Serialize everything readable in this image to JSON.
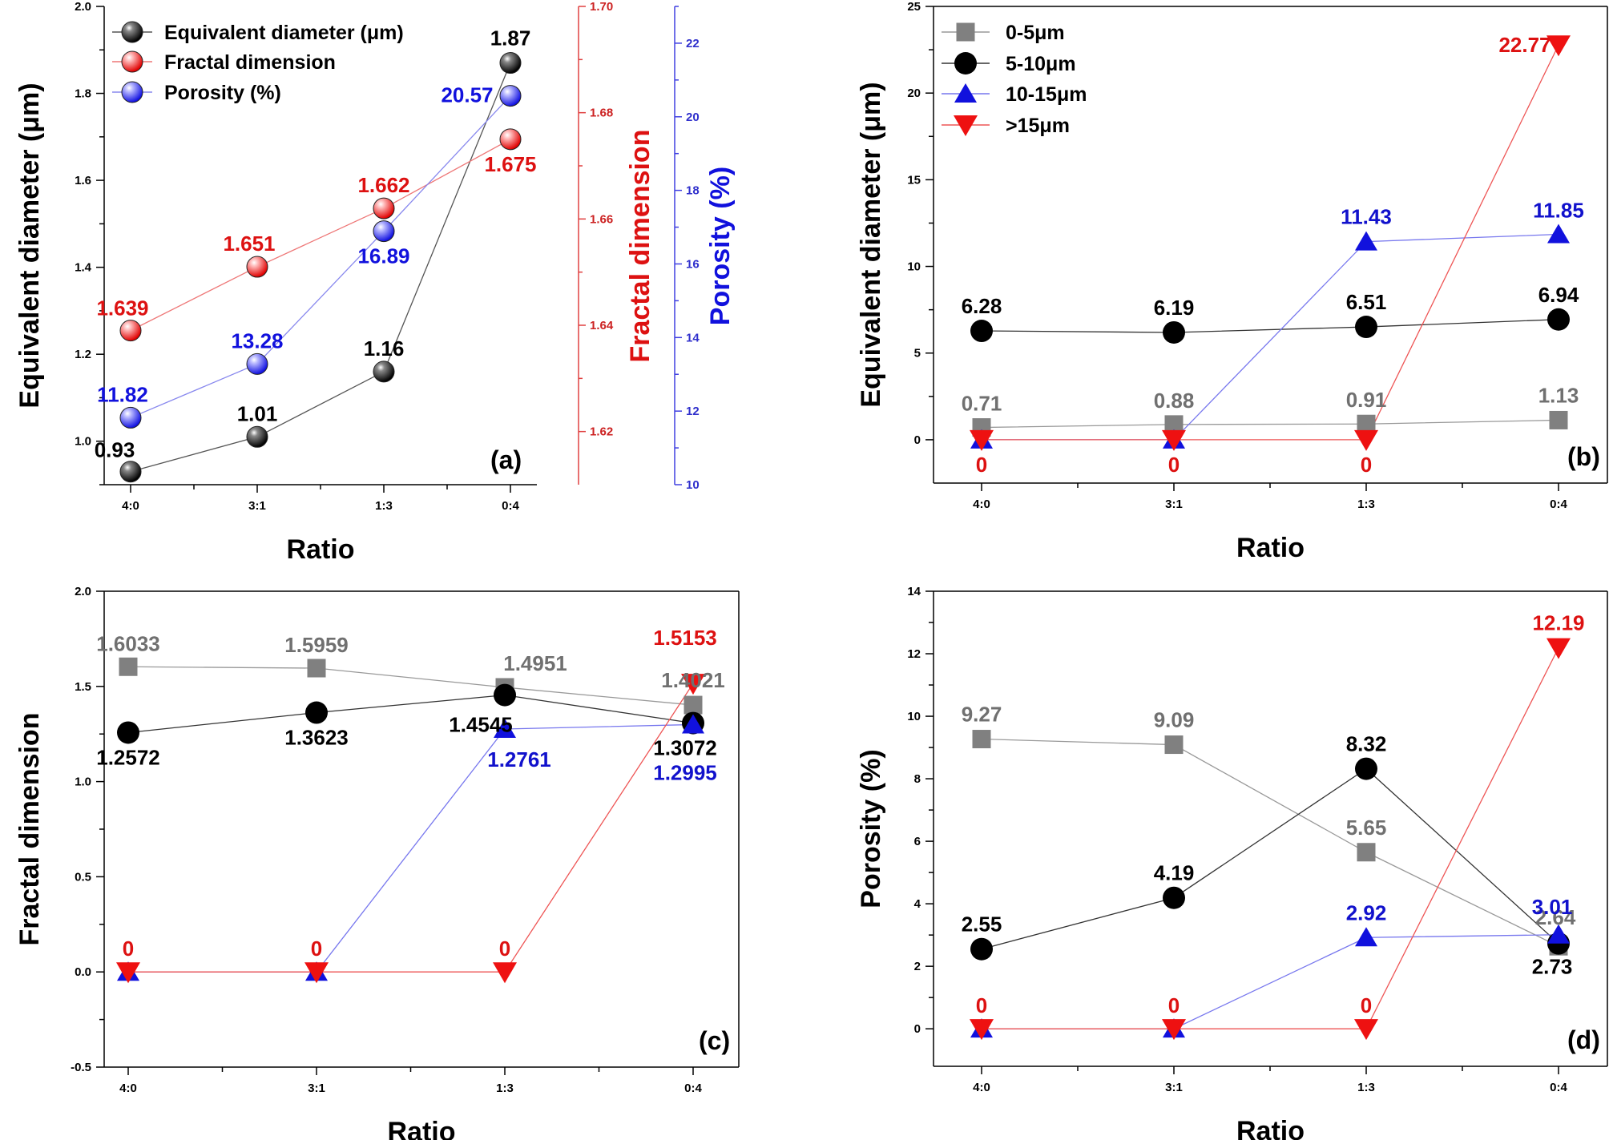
{
  "chart_data": [
    {
      "panel": "(a)",
      "type": "line",
      "categories": [
        "4:0",
        "3:1",
        "1:3",
        "0:4"
      ],
      "xlabel": "Ratio",
      "y_axes": [
        {
          "label": "Equivalent diameter (μm)",
          "range": [
            0.9,
            2.0
          ],
          "ticks": [
            1.0,
            1.2,
            1.4,
            1.6,
            1.8,
            2.0
          ],
          "color": "#000000"
        },
        {
          "label": "Fractal dimension",
          "range": [
            1.61,
            1.7
          ],
          "ticks": [
            1.62,
            1.64,
            1.66,
            1.68,
            1.7
          ],
          "color": "#cc1111"
        },
        {
          "label": "Porosity (%)",
          "range": [
            10,
            23
          ],
          "ticks": [
            10,
            12,
            14,
            16,
            18,
            20,
            22
          ],
          "color": "#1515cc"
        }
      ],
      "series": [
        {
          "name": "Equivalent diameter (μm)",
          "axis": 0,
          "color": "#000000",
          "values": [
            0.93,
            1.01,
            1.16,
            1.87
          ],
          "labels": [
            "0.93",
            "1.01",
            "1.16",
            "1.87"
          ]
        },
        {
          "name": "Fractal dimension",
          "axis": 1,
          "color": "#dd1111",
          "values": [
            1.639,
            1.651,
            1.662,
            1.675
          ],
          "labels": [
            "1.639",
            "1.651",
            "1.662",
            "1.675"
          ]
        },
        {
          "name": "Porosity (%)",
          "axis": 2,
          "color": "#1111dd",
          "values": [
            11.82,
            13.28,
            16.89,
            20.57
          ],
          "labels": [
            "11.82",
            "13.28",
            "16.89",
            "20.57"
          ]
        }
      ],
      "legend": "top-left"
    },
    {
      "panel": "(b)",
      "type": "line",
      "categories": [
        "4:0",
        "3:1",
        "1:3",
        "0:4"
      ],
      "xlabel": "Ratio",
      "ylabel": "Equivalent diameter (μm)",
      "ylim": [
        -2.5,
        25
      ],
      "yticks": [
        0,
        5,
        10,
        15,
        20,
        25
      ],
      "series": [
        {
          "name": "0-5μm",
          "color": "#808080",
          "values": [
            0.71,
            0.88,
            0.91,
            1.13
          ],
          "labels": [
            "0.71",
            "0.88",
            "0.91",
            "1.13"
          ]
        },
        {
          "name": "5-10μm",
          "color": "#000000",
          "values": [
            6.28,
            6.19,
            6.51,
            6.94
          ],
          "labels": [
            "6.28",
            "6.19",
            "6.51",
            "6.94"
          ]
        },
        {
          "name": "10-15μm",
          "color": "#1111dd",
          "values": [
            0,
            0,
            11.43,
            11.85
          ],
          "labels": [
            "",
            "",
            "11.43",
            "11.85"
          ]
        },
        {
          "name": ">15μm",
          "color": "#ee1111",
          "values": [
            0,
            0,
            0,
            22.77
          ],
          "labels": [
            "0",
            "0",
            "0",
            "22.77"
          ]
        }
      ],
      "legend": "top-left"
    },
    {
      "panel": "(c)",
      "type": "line",
      "categories": [
        "4:0",
        "3:1",
        "1:3",
        "0:4"
      ],
      "xlabel": "Ratio",
      "ylabel": "Fractal dimension",
      "ylim": [
        -0.5,
        2.0
      ],
      "yticks": [
        -0.5,
        0.0,
        0.5,
        1.0,
        1.5,
        2.0
      ],
      "series": [
        {
          "name": "0-5μm",
          "color": "#808080",
          "values": [
            1.6033,
            1.5959,
            1.4951,
            1.4021
          ],
          "labels": [
            "1.6033",
            "1.5959",
            "1.4951",
            "1.4021"
          ]
        },
        {
          "name": "5-10μm",
          "color": "#000000",
          "values": [
            1.2572,
            1.3623,
            1.4545,
            1.3072
          ],
          "labels": [
            "1.2572",
            "1.3623",
            "1.4545",
            "1.3072"
          ]
        },
        {
          "name": "10-15μm",
          "color": "#1111dd",
          "values": [
            0,
            0,
            1.2761,
            1.2995
          ],
          "labels": [
            "",
            "",
            "1.2761",
            "1.2995"
          ]
        },
        {
          "name": ">15μm",
          "color": "#ee1111",
          "values": [
            0,
            0,
            0,
            1.5153
          ],
          "labels": [
            "0",
            "0",
            "0",
            "1.5153"
          ]
        }
      ]
    },
    {
      "panel": "(d)",
      "type": "line",
      "categories": [
        "4:0",
        "3:1",
        "1:3",
        "0:4"
      ],
      "xlabel": "Ratio",
      "ylabel": "Porosity (%)",
      "ylim": [
        -1.2,
        14
      ],
      "yticks": [
        0,
        2,
        4,
        6,
        8,
        10,
        12,
        14
      ],
      "series": [
        {
          "name": "0-5μm",
          "color": "#808080",
          "values": [
            9.27,
            9.09,
            5.65,
            2.64
          ],
          "labels": [
            "9.27",
            "9.09",
            "5.65",
            "2.64"
          ]
        },
        {
          "name": "5-10μm",
          "color": "#000000",
          "values": [
            2.55,
            4.19,
            8.32,
            2.73
          ],
          "labels": [
            "2.55",
            "4.19",
            "8.32",
            "2.73"
          ]
        },
        {
          "name": "10-15μm",
          "color": "#1111dd",
          "values": [
            0,
            0,
            2.92,
            3.01
          ],
          "labels": [
            "",
            "",
            "2.92",
            "3.01"
          ]
        },
        {
          "name": ">15μm",
          "color": "#ee1111",
          "values": [
            0,
            0,
            0,
            12.19
          ],
          "labels": [
            "0",
            "0",
            "0",
            "12.19"
          ]
        }
      ]
    }
  ]
}
